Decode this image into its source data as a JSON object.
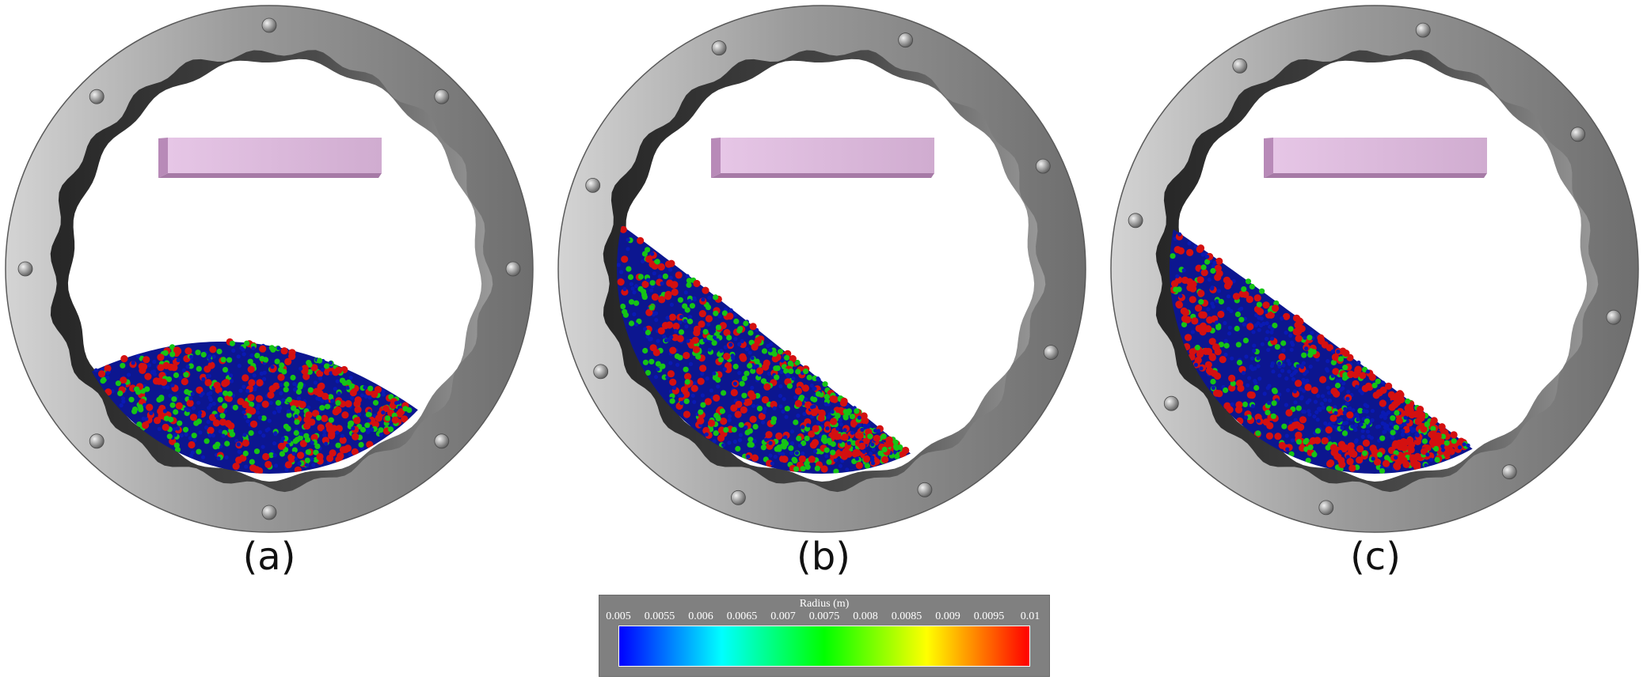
{
  "panels": [
    {
      "label": "(a)",
      "pile": "flat"
    },
    {
      "label": "(b)",
      "pile": "tilted"
    },
    {
      "label": "(c)",
      "pile": "tilted-segregated"
    }
  ],
  "colorbar": {
    "title": "Radius (m)",
    "ticks": [
      "0.005",
      "0.0055",
      "0.006",
      "0.0065",
      "0.007",
      "0.0075",
      "0.008",
      "0.0085",
      "0.009",
      "0.0095",
      "0.01"
    ],
    "colormap": [
      "#0000ff",
      "#00ffff",
      "#00ff00",
      "#ffff00",
      "#ff0000"
    ]
  },
  "colors": {
    "ring": "#8a8a8a",
    "ring_highlight": "#c8c8c8",
    "liner": "#2e2e2e",
    "lifter": "#dcb8dc",
    "particle_small": "#0a1ab4",
    "particle_medium": "#16c416",
    "particle_large": "#d41010"
  }
}
